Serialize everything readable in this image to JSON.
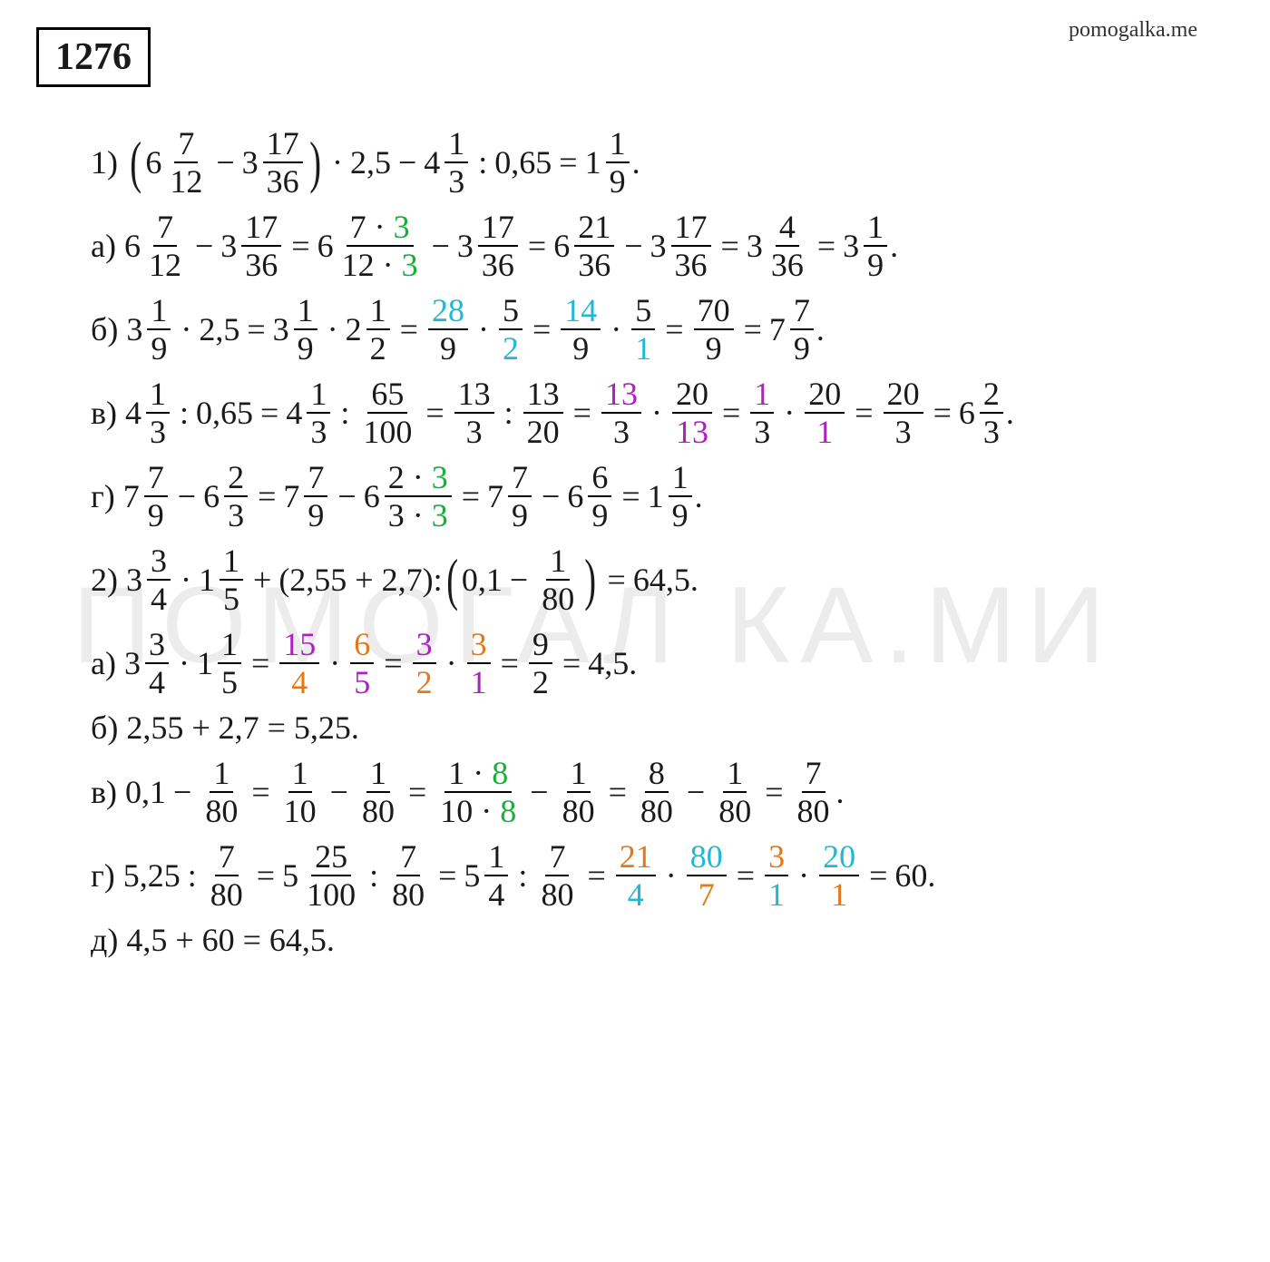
{
  "site": "pomogalka.me",
  "watermark": "ПОМОГАЛ КА.МИ",
  "problem_number": "1276",
  "colors": {
    "green": "#1aaf3a",
    "cyan": "#1fb8d6",
    "orange": "#e67817",
    "purple": "#b020c0",
    "text": "#1a1a1a",
    "background": "#ffffff",
    "watermark": "#ececec"
  },
  "typography": {
    "body_fontsize_pt": 27,
    "problem_number_fontsize_pt": 32,
    "font_family": "Georgia, serif"
  },
  "lines": {
    "p1_main": {
      "label": "1)",
      "expr_parts": [
        "(",
        "6",
        "7",
        "12",
        "−",
        "3",
        "17",
        "36",
        ")",
        "·",
        "2,5",
        "−",
        "4",
        "1",
        "3",
        ":",
        "0,65",
        "=",
        "1",
        "1",
        "9",
        "."
      ]
    },
    "p1_a": {
      "label": "а)",
      "parts": [
        "6",
        "7",
        "12",
        "−",
        "3",
        "17",
        "36",
        "=",
        "6",
        "7 · ",
        "3",
        "12 · ",
        "3",
        "−",
        "3",
        "17",
        "36",
        "=",
        "6",
        "21",
        "36",
        "−",
        "3",
        "17",
        "36",
        "=",
        "3",
        "4",
        "36",
        "=",
        "3",
        "1",
        "9",
        "."
      ]
    },
    "p1_b": {
      "label": "б)",
      "parts": [
        "3",
        "1",
        "9",
        "·",
        "2,5",
        "=",
        "3",
        "1",
        "9",
        "·",
        "2",
        "1",
        "2",
        "=",
        "28",
        "9",
        "·",
        "5",
        "2",
        "=",
        "14",
        "9",
        "·",
        "5",
        "1",
        "=",
        "70",
        "9",
        "=",
        "7",
        "7",
        "9",
        "."
      ]
    },
    "p1_v": {
      "label": "в)",
      "parts": [
        "4",
        "1",
        "3",
        ":",
        "0,65",
        "=",
        "4",
        "1",
        "3",
        ":",
        "65",
        "100",
        "=",
        "13",
        "3",
        ":",
        "13",
        "20",
        "=",
        "13",
        "3",
        "·",
        "20",
        "13",
        "=",
        "1",
        "3",
        "·",
        "20",
        "1",
        "=",
        "20",
        "3",
        "=",
        "6",
        "2",
        "3",
        "."
      ]
    },
    "p1_g": {
      "label": "г)",
      "parts": [
        "7",
        "7",
        "9",
        "−",
        "6",
        "2",
        "3",
        "=",
        "7",
        "7",
        "9",
        "−",
        "6",
        "2 · ",
        "3",
        "3 · ",
        "3",
        "=",
        "7",
        "7",
        "9",
        "−",
        "6",
        "6",
        "9",
        "=",
        "1",
        "1",
        "9",
        "."
      ]
    },
    "p2_main": {
      "label": "2)",
      "parts": [
        "3",
        "3",
        "4",
        "·",
        "1",
        "1",
        "5",
        "+",
        "(2,55 + 2,7):",
        "(",
        "0,1",
        "−",
        "1",
        "80",
        ")",
        "=",
        "64,5."
      ]
    },
    "p2_a": {
      "label": "а)",
      "parts": [
        "3",
        "3",
        "4",
        "·",
        "1",
        "1",
        "5",
        "=",
        "15",
        "4",
        "·",
        "6",
        "5",
        "=",
        "3",
        "2",
        "·",
        "3",
        "1",
        "=",
        "9",
        "2",
        "=",
        "4,5."
      ]
    },
    "p2_b": {
      "label": "б)",
      "text": "2,55 + 2,7 = 5,25."
    },
    "p2_v": {
      "label": "в)",
      "parts": [
        "0,1",
        "−",
        "1",
        "80",
        "=",
        "1",
        "10",
        "−",
        "1",
        "80",
        "=",
        "1 · ",
        "8",
        "10 · ",
        "8",
        "−",
        "1",
        "80",
        "=",
        "8",
        "80",
        "−",
        "1",
        "80",
        "=",
        "7",
        "80",
        "."
      ]
    },
    "p2_g": {
      "label": "г)",
      "parts": [
        "5,25",
        ":",
        "7",
        "80",
        "=",
        "5",
        "25",
        "100",
        ":",
        "7",
        "80",
        "=",
        "5",
        "1",
        "4",
        ":",
        "7",
        "80",
        "=",
        "21",
        "4",
        "·",
        "80",
        "7",
        "=",
        "3",
        "1",
        "·",
        "20",
        "1",
        "=",
        "60."
      ]
    },
    "p2_d": {
      "label": "д)",
      "text": "4,5 + 60 = 64,5."
    }
  }
}
